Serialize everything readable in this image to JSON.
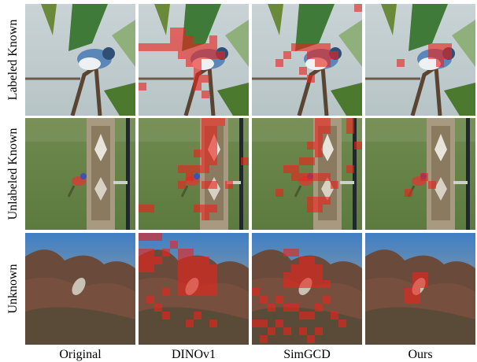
{
  "figure": {
    "rows": [
      "Labeled Known",
      "Unlabeled Known",
      "Unknown"
    ],
    "columns": [
      "Original",
      "DINOv1",
      "SimGCD",
      "Ours"
    ]
  }
}
